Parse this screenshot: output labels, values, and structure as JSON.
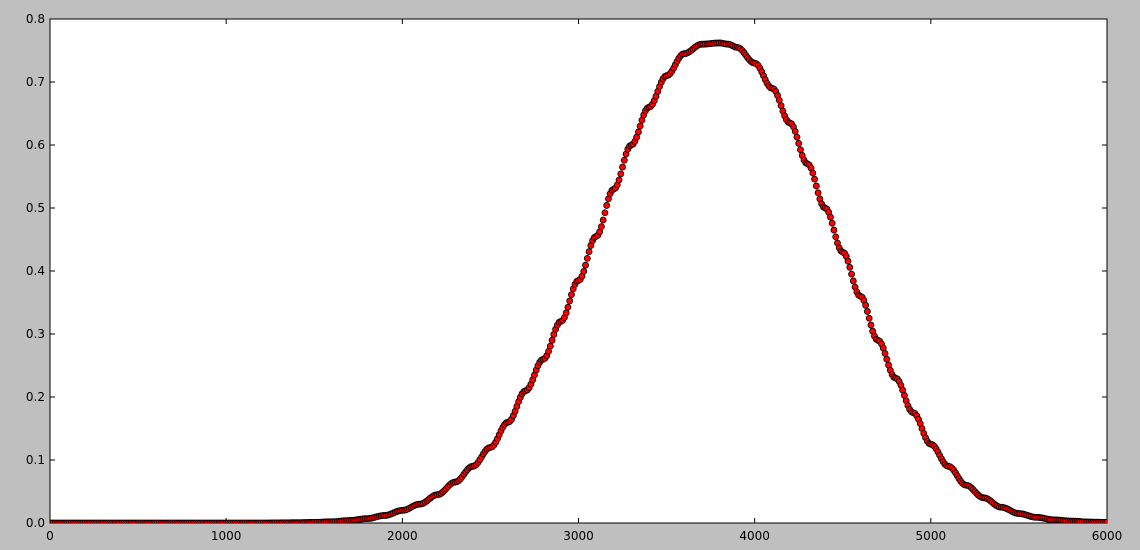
{
  "chart_data": {
    "type": "scatter",
    "title": "",
    "xlabel": "",
    "ylabel": "",
    "xlim": [
      0,
      6000
    ],
    "ylim": [
      0,
      0.8
    ],
    "xticks": [
      0,
      1000,
      2000,
      3000,
      4000,
      5000,
      6000
    ],
    "xtick_labels": [
      "0",
      "1000",
      "2000",
      "3000",
      "4000",
      "5000",
      "6000"
    ],
    "yticks": [
      0.0,
      0.1,
      0.2,
      0.3,
      0.4,
      0.5,
      0.6,
      0.7,
      0.8
    ],
    "ytick_labels": [
      "0.0",
      "0.1",
      "0.2",
      "0.3",
      "0.4",
      "0.5",
      "0.6",
      "0.7",
      "0.8"
    ],
    "grid": false,
    "legend": "none",
    "marker_color": "#ff0000",
    "marker_edge_color": "#000000",
    "series": [
      {
        "x": [
          0,
          500,
          1000,
          1200,
          1400,
          1500,
          1600,
          1700,
          1800,
          1900,
          2000,
          2100,
          2200,
          2300,
          2400,
          2500,
          2600,
          2700,
          2800,
          2900,
          3000,
          3100,
          3200,
          3300,
          3400,
          3500,
          3600,
          3700,
          3800,
          3850,
          3900,
          4000,
          4100,
          4200,
          4300,
          4400,
          4500,
          4600,
          4700,
          4800,
          4900,
          5000,
          5100,
          5200,
          5300,
          5400,
          5500,
          5600,
          5700,
          5800,
          5900,
          6000
        ],
        "y": [
          0.0,
          0.0,
          0.0,
          0.0,
          0.0005,
          0.001,
          0.002,
          0.004,
          0.007,
          0.012,
          0.02,
          0.03,
          0.045,
          0.065,
          0.09,
          0.12,
          0.16,
          0.21,
          0.26,
          0.32,
          0.385,
          0.455,
          0.53,
          0.6,
          0.66,
          0.71,
          0.745,
          0.76,
          0.762,
          0.76,
          0.755,
          0.73,
          0.69,
          0.635,
          0.57,
          0.5,
          0.43,
          0.36,
          0.29,
          0.23,
          0.175,
          0.125,
          0.09,
          0.06,
          0.04,
          0.025,
          0.015,
          0.009,
          0.005,
          0.003,
          0.0015,
          0.001
        ]
      }
    ]
  }
}
